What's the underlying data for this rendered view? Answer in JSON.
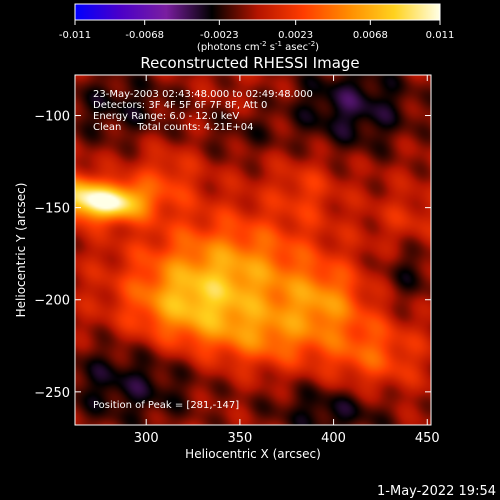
{
  "chart_data": {
    "type": "heatmap",
    "title": "Reconstructed RHESSI Image",
    "colorbar": {
      "min": -0.011,
      "max": 0.011,
      "ticks": [
        "-0.011",
        "-0.0068",
        "-0.0023",
        "0.0023",
        "0.0068",
        "0.011"
      ],
      "unit_text": "(photons cm",
      "unit_sup1": "-2",
      "unit_mid": " s",
      "unit_sup2": "-1",
      "unit_mid2": " asec",
      "unit_sup3": "-2",
      "unit_end": ")",
      "colors": [
        "#0000ff",
        "#4b00c8",
        "#7a1ea0",
        "#000000",
        "#b41400",
        "#ff3c00",
        "#ff8c00",
        "#ffd21e",
        "#ffffe6"
      ]
    },
    "xlabel": "Heliocentric X (arcsec)",
    "ylabel": "Heliocentric Y (arcsec)",
    "xlim": [
      262,
      452
    ],
    "ylim": [
      -268,
      -78
    ],
    "xticks": [
      300,
      350,
      400,
      450
    ],
    "yticks": [
      -100,
      -150,
      -200,
      -250
    ],
    "annotations": [
      "23-May-2003 02:43:48.000 to 02:49:48.000",
      "Detectors: 3F 4F 5F 6F 7F 8F, Att 0",
      "Energy Range: 6.0 - 12.0 keV",
      "Clean     Total counts: 4.21E+04"
    ],
    "peak_label": "Position of Peak = [281,-147]",
    "peak": {
      "x": 281,
      "y": -147
    },
    "footer_date": "1-May-2022 19:54",
    "sources": [
      {
        "x": 281,
        "y": -147,
        "amp": 0.011,
        "sx": 13,
        "sy": 7
      },
      {
        "x": 262,
        "y": -143,
        "amp": 0.006,
        "sx": 8,
        "sy": 8
      },
      {
        "x": 345,
        "y": -185,
        "amp": 0.006,
        "sx": 32,
        "sy": 20
      },
      {
        "x": 320,
        "y": -205,
        "amp": 0.0045,
        "sx": 22,
        "sy": 15
      },
      {
        "x": 365,
        "y": -220,
        "amp": 0.004,
        "sx": 25,
        "sy": 12
      },
      {
        "x": 395,
        "y": -200,
        "amp": 0.004,
        "sx": 15,
        "sy": 12
      },
      {
        "x": 420,
        "y": -230,
        "amp": 0.0035,
        "sx": 18,
        "sy": 15
      },
      {
        "x": 310,
        "y": -135,
        "amp": 0.0025,
        "sx": 12,
        "sy": 12
      },
      {
        "x": 385,
        "y": -140,
        "amp": 0.002,
        "sx": 12,
        "sy": 12
      },
      {
        "x": 440,
        "y": -160,
        "amp": 0.0025,
        "sx": 12,
        "sy": 12
      },
      {
        "x": 285,
        "y": -95,
        "amp": -0.0025,
        "sx": 25,
        "sy": 15
      },
      {
        "x": 410,
        "y": -95,
        "amp": -0.0035,
        "sx": 25,
        "sy": 18
      },
      {
        "x": 290,
        "y": -245,
        "amp": -0.003,
        "sx": 30,
        "sy": 18
      },
      {
        "x": 400,
        "y": -260,
        "amp": -0.003,
        "sx": 25,
        "sy": 12
      },
      {
        "x": 440,
        "y": -180,
        "amp": -0.0025,
        "sx": 12,
        "sy": 18
      },
      {
        "x": 350,
        "y": -110,
        "amp": -0.0015,
        "sx": 15,
        "sy": 10
      }
    ]
  }
}
